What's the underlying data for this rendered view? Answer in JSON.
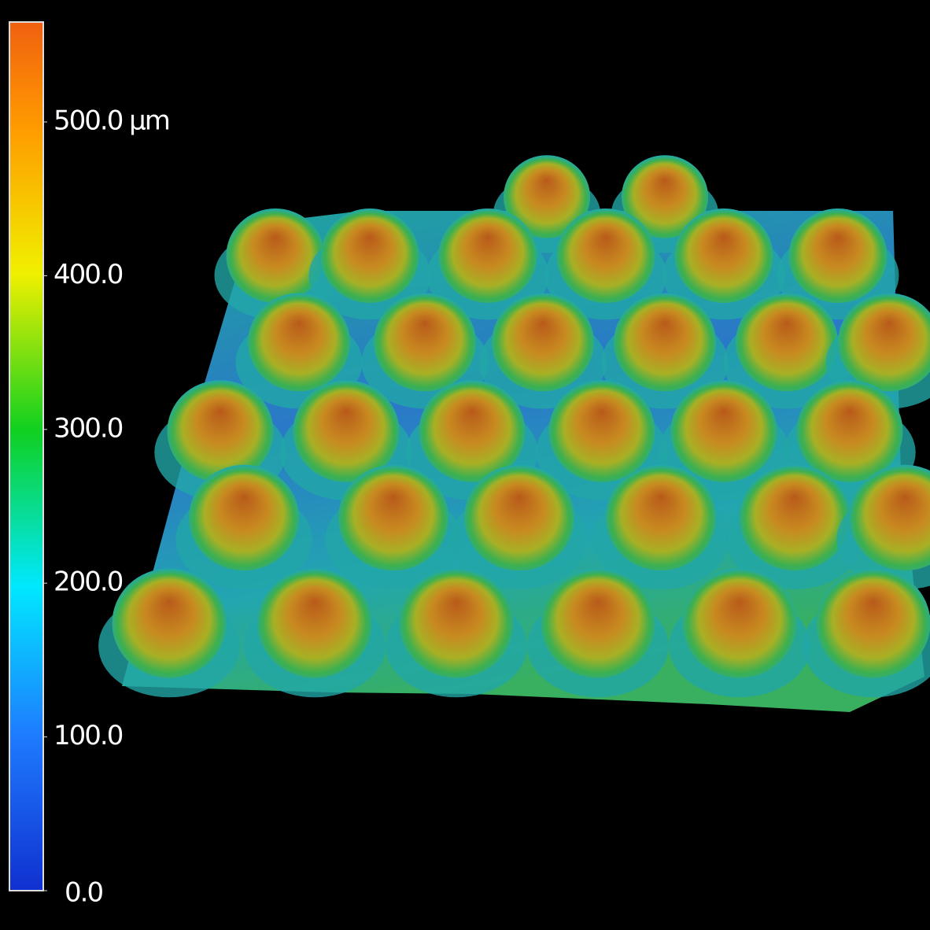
{
  "colorbar": {
    "range": [
      0,
      565
    ],
    "ticks": [
      {
        "value": 0,
        "label": "0.0"
      },
      {
        "value": 100,
        "label": "100.0"
      },
      {
        "value": 200,
        "label": "200.0"
      },
      {
        "value": 300,
        "label": "300.0"
      },
      {
        "value": 400,
        "label": "400.0"
      },
      {
        "value": 500,
        "label": "500.0 µm"
      }
    ]
  }
}
